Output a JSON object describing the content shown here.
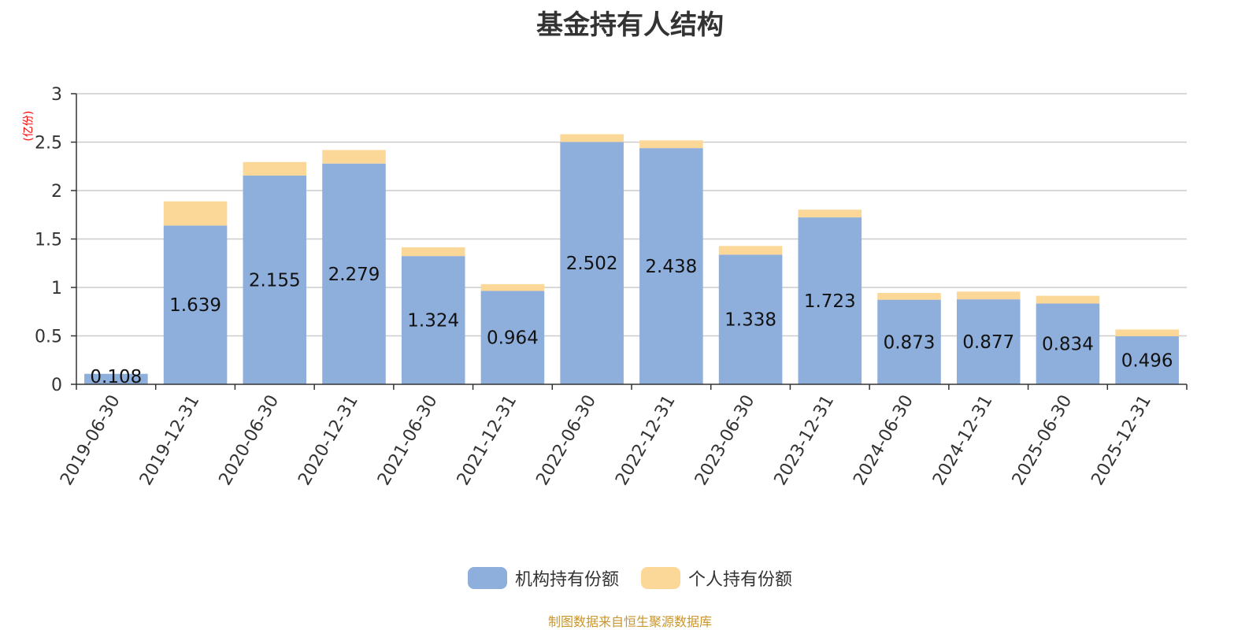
{
  "chart_data": {
    "type": "bar",
    "stacked": true,
    "title": "基金持有人结构",
    "y_unit": "(亿份)",
    "ylim": [
      0,
      3
    ],
    "y_ticks": [
      "0",
      "0.5",
      "1",
      "1.5",
      "2",
      "2.5",
      "3"
    ],
    "grid": true,
    "legend_position": "bottom-center",
    "categories": [
      "2019-06-30",
      "2019-12-31",
      "2020-06-30",
      "2020-12-31",
      "2021-06-30",
      "2021-12-31",
      "2022-06-30",
      "2022-12-31",
      "2023-06-30",
      "2023-12-31",
      "2024-06-30",
      "2024-12-31",
      "2025-06-30",
      "2025-12-31"
    ],
    "series": [
      {
        "name": "机构持有份额",
        "color": "#8eaedb",
        "values": [
          0.108,
          1.639,
          2.155,
          2.279,
          1.324,
          0.964,
          2.502,
          2.438,
          1.338,
          1.723,
          0.873,
          0.877,
          0.834,
          0.496
        ],
        "labels": [
          "0.108",
          "1.639",
          "2.155",
          "2.279",
          "1.324",
          "0.964",
          "2.502",
          "2.438",
          "1.338",
          "1.723",
          "0.873",
          "0.877",
          "0.834",
          "0.496"
        ]
      },
      {
        "name": "个人持有份额",
        "color": "#fcd898",
        "values": [
          0.0,
          0.25,
          0.14,
          0.14,
          0.09,
          0.07,
          0.08,
          0.08,
          0.09,
          0.08,
          0.07,
          0.08,
          0.08,
          0.07
        ]
      }
    ]
  },
  "footer": {
    "source": "制图数据来自恒生聚源数据库"
  }
}
